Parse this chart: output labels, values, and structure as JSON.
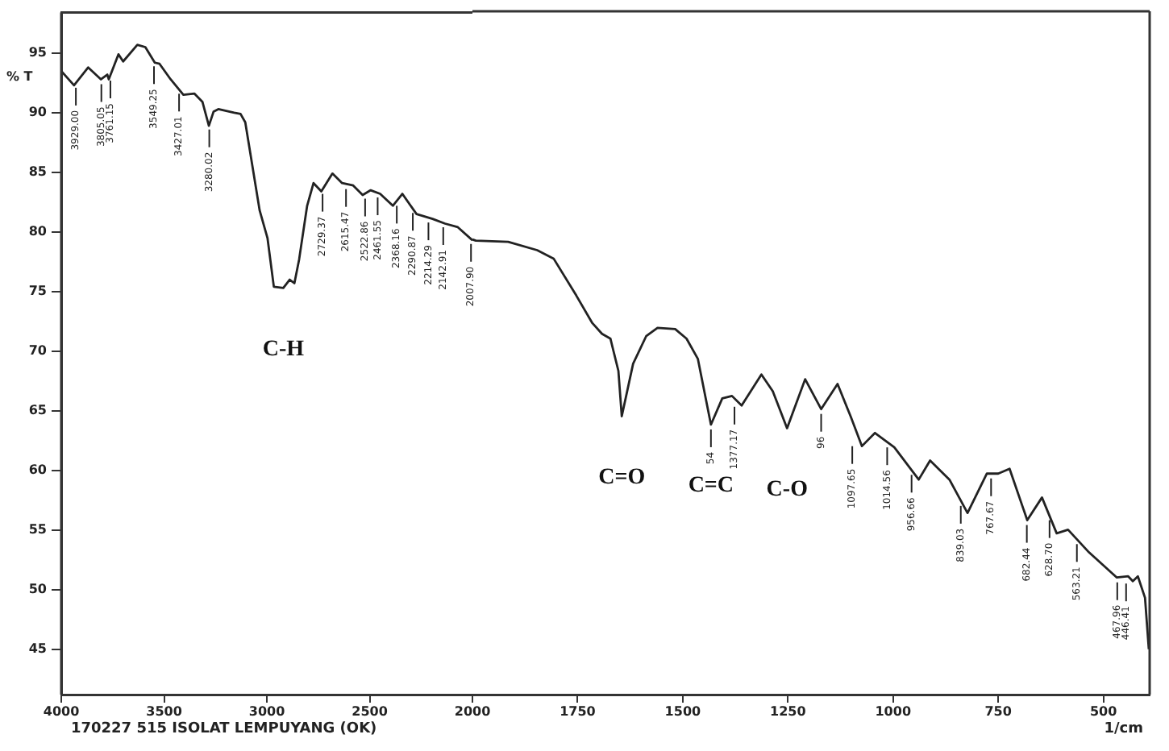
{
  "chart_data": [
    {
      "type": "line",
      "ylabel": "% T",
      "annotations": [
        "170227 515 ISOLAT LEMPUYANG (OK)",
        {
          "text": "C-H",
          "x": 2920,
          "y": 75.3
        },
        {
          "text": "3929.00",
          "x": 3929,
          "y": 92.5
        },
        {
          "text": "3805.05",
          "x": 3805,
          "y": 92.8
        },
        {
          "text": "3761.15",
          "x": 3761,
          "y": 93.1
        },
        {
          "text": "3549.25",
          "x": 3549,
          "y": 94.3
        },
        {
          "text": "3427.01",
          "x": 3427,
          "y": 92.0
        },
        {
          "text": "3280.02",
          "x": 3280,
          "y": 89.0
        },
        {
          "text": "2729.37",
          "x": 2729,
          "y": 83.6
        },
        {
          "text": "2615.47",
          "x": 2615,
          "y": 84.0
        },
        {
          "text": "2522.86",
          "x": 2522,
          "y": 83.2
        },
        {
          "text": "2461.55",
          "x": 2461,
          "y": 83.3
        },
        {
          "text": "2368.16",
          "x": 2368,
          "y": 82.6
        },
        {
          "text": "2290.87",
          "x": 2290,
          "y": 82.0
        },
        {
          "text": "2214.29",
          "x": 2214,
          "y": 81.2
        },
        {
          "text": "2142.91",
          "x": 2142,
          "y": 80.8
        },
        {
          "text": "2007.90",
          "x": 2007,
          "y": 79.4
        }
      ],
      "xlim": [
        4000,
        2000
      ],
      "xticks": [
        4000,
        3500,
        3000,
        2500,
        2000
      ],
      "ylim": [
        41.2,
        98.4
      ],
      "yticks": [
        45,
        50,
        55,
        60,
        65,
        70,
        75,
        80,
        85,
        90,
        95
      ],
      "series": [
        {
          "color": "#222222",
          "x": [
            4000,
            3938,
            3869,
            3807,
            3776,
            3769,
            3722,
            3699,
            3630,
            3591,
            3545,
            3522,
            3468,
            3406,
            3352,
            3313,
            3282,
            3259,
            3236,
            3159,
            3128,
            3105,
            3035,
            2997,
            2966,
            2920,
            2889,
            2866,
            2843,
            2804,
            2773,
            2735,
            2681,
            2634,
            2580,
            2534,
            2495,
            2449,
            2387,
            2341,
            2272,
            2194,
            2133,
            2071,
            2000
          ],
          "values": [
            93.5,
            92.3,
            93.8,
            92.8,
            93.2,
            92.8,
            94.9,
            94.3,
            95.7,
            95.5,
            94.2,
            94.1,
            92.8,
            91.5,
            91.6,
            90.9,
            88.9,
            90.1,
            90.3,
            90.0,
            89.9,
            89.2,
            81.8,
            79.5,
            75.4,
            75.3,
            76.0,
            75.7,
            77.7,
            82.2,
            84.1,
            83.4,
            84.9,
            84.1,
            83.9,
            83.1,
            83.5,
            83.2,
            82.2,
            83.2,
            81.5,
            81.1,
            80.7,
            80.4,
            79.3
          ]
        }
      ]
    },
    {
      "type": "line",
      "xlabel": "1/cm",
      "tick_labels": "x",
      "annotations": [
        {
          "text": "C=O",
          "x": 1645,
          "y": 64.5
        },
        {
          "text": "C=C",
          "x": 1433,
          "y": 63.8
        },
        {
          "text": "C-O",
          "x": 1252,
          "y": 63.5
        },
        {
          "text": "54",
          "x": 1433,
          "y": 63.8
        },
        {
          "text": "1377.17",
          "x": 1377,
          "y": 65.7
        },
        {
          "text": "96",
          "x": 1171,
          "y": 65.1
        },
        {
          "text": "1097.65",
          "x": 1097,
          "y": 62.4
        },
        {
          "text": "1014.56",
          "x": 1014,
          "y": 62.3
        },
        {
          "text": "956.66",
          "x": 956,
          "y": 60.0
        },
        {
          "text": "839.03",
          "x": 839,
          "y": 57.4
        },
        {
          "text": "767.67",
          "x": 767,
          "y": 59.7
        },
        {
          "text": "682.44",
          "x": 682,
          "y": 55.8
        },
        {
          "text": "628.70",
          "x": 628,
          "y": 56.2
        },
        {
          "text": "563.21",
          "x": 563,
          "y": 54.2
        },
        {
          "text": "467.96",
          "x": 467,
          "y": 51.0
        },
        {
          "text": "446.41",
          "x": 446,
          "y": 50.9
        }
      ],
      "xlim": [
        2000,
        390
      ],
      "xticks": [
        1750,
        1500,
        1250,
        1000,
        750,
        500
      ],
      "ylim": [
        41.2,
        98.4
      ],
      "series": [
        {
          "color": "#222222",
          "x": [
            2000,
            1992,
            1915,
            1846,
            1807,
            1753,
            1715,
            1692,
            1672,
            1653,
            1645,
            1618,
            1587,
            1560,
            1518,
            1491,
            1464,
            1433,
            1406,
            1383,
            1360,
            1313,
            1286,
            1252,
            1209,
            1171,
            1132,
            1101,
            1074,
            1043,
            997,
            939,
            912,
            866,
            823,
            777,
            750,
            723,
            681,
            646,
            611,
            584,
            534,
            468,
            441,
            430,
            418,
            401,
            392
          ],
          "values": [
            79.3,
            79.2,
            79.1,
            78.4,
            77.7,
            74.6,
            72.3,
            71.4,
            71.0,
            68.3,
            64.5,
            68.9,
            71.2,
            71.9,
            71.8,
            71.0,
            69.3,
            63.8,
            66.0,
            66.2,
            65.4,
            68.0,
            66.6,
            63.5,
            67.6,
            65.1,
            67.2,
            64.5,
            62.0,
            63.1,
            61.9,
            59.2,
            60.8,
            59.2,
            56.4,
            59.7,
            59.7,
            60.1,
            55.8,
            57.7,
            54.7,
            55.0,
            53.1,
            51.0,
            51.1,
            50.7,
            51.1,
            49.3,
            45.0
          ]
        }
      ]
    }
  ]
}
